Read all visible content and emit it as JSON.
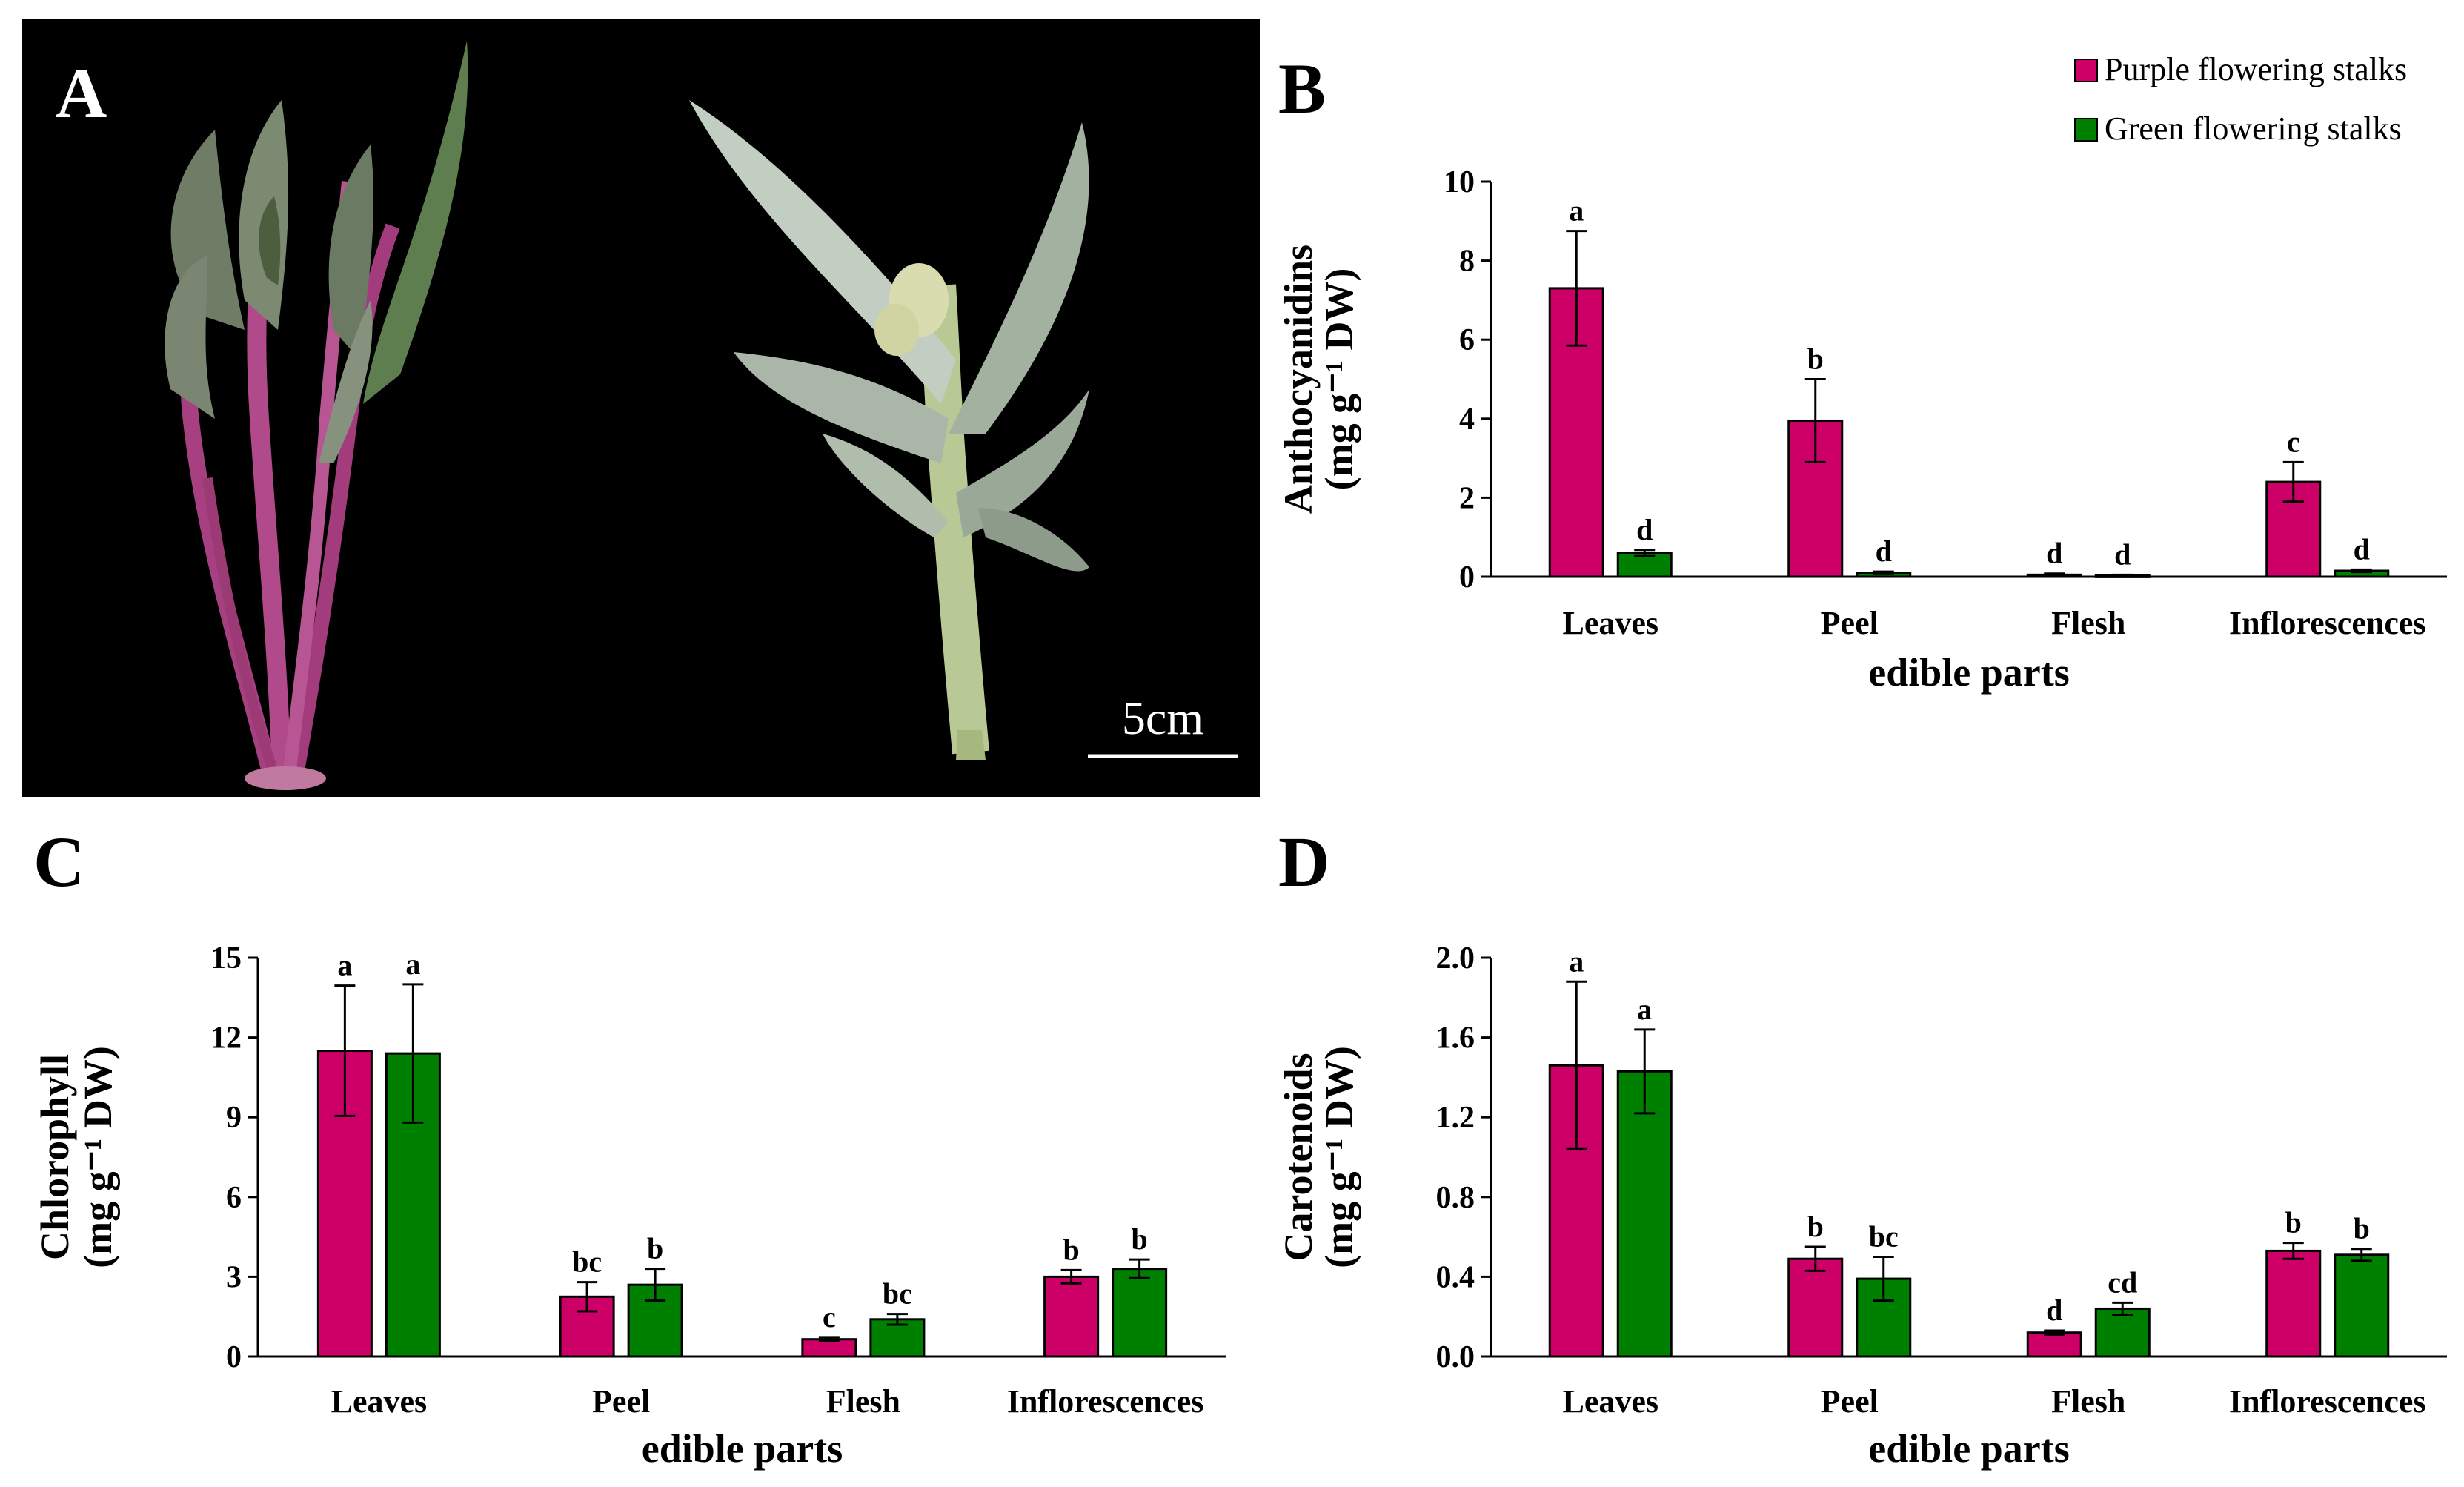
{
  "panels": {
    "a": "A",
    "b": "B",
    "c": "C",
    "d": "D"
  },
  "photo": {
    "scale_label": "5cm"
  },
  "legend": {
    "items": [
      {
        "label": "Purple flowering stalks",
        "color": "#cc0066"
      },
      {
        "label": "Green flowering stalks",
        "color": "#008000"
      }
    ]
  },
  "chart_data": [
    {
      "panel": "B",
      "type": "bar",
      "categories": [
        "Leaves",
        "Peel",
        "Flesh",
        "Inflorescences"
      ],
      "xlabel": "edible parts",
      "ylabel": "Anthocyanidins",
      "ylabel_unit": "(mg g⁻¹ DW)",
      "ylim": [
        0,
        10
      ],
      "yticks": [
        "0",
        "2",
        "4",
        "6",
        "8",
        "10"
      ],
      "series": [
        {
          "name": "Purple flowering stalks",
          "color": "#cc0066",
          "values": [
            7.3,
            3.95,
            0.05,
            2.4
          ],
          "errors": [
            1.45,
            1.05,
            0.03,
            0.5
          ],
          "labels": [
            "a",
            "b",
            "d",
            "c"
          ]
        },
        {
          "name": "Green flowering stalks",
          "color": "#008000",
          "values": [
            0.6,
            0.1,
            0.03,
            0.15
          ],
          "errors": [
            0.08,
            0.03,
            0.02,
            0.03
          ],
          "labels": [
            "d",
            "d",
            "d",
            "d"
          ]
        }
      ]
    },
    {
      "panel": "C",
      "type": "bar",
      "categories": [
        "Leaves",
        "Peel",
        "Flesh",
        "Inflorescences"
      ],
      "xlabel": "edible parts",
      "ylabel": "Chlorophyll",
      "ylabel_unit": "(mg g⁻¹ DW)",
      "ylim": [
        0,
        15
      ],
      "yticks": [
        "0",
        "3",
        "6",
        "9",
        "12",
        "15"
      ],
      "series": [
        {
          "name": "Purple flowering stalks",
          "color": "#cc0066",
          "values": [
            11.5,
            2.25,
            0.65,
            3.0
          ],
          "errors": [
            2.45,
            0.55,
            0.08,
            0.25
          ],
          "labels": [
            "a",
            "bc",
            "c",
            "b"
          ]
        },
        {
          "name": "Green flowering stalks",
          "color": "#008000",
          "values": [
            11.4,
            2.7,
            1.4,
            3.3
          ],
          "errors": [
            2.6,
            0.6,
            0.2,
            0.35
          ],
          "labels": [
            "a",
            "b",
            "bc",
            "b"
          ]
        }
      ]
    },
    {
      "panel": "D",
      "type": "bar",
      "categories": [
        "Leaves",
        "Peel",
        "Flesh",
        "Inflorescences"
      ],
      "xlabel": "edible parts",
      "ylabel": "Carotenoids",
      "ylabel_unit": "(mg g⁻¹ DW)",
      "ylim": [
        0,
        2.0
      ],
      "yticks": [
        "0.0",
        "0.4",
        "0.8",
        "1.2",
        "1.6",
        "2.0"
      ],
      "series": [
        {
          "name": "Purple flowering stalks",
          "color": "#cc0066",
          "values": [
            1.46,
            0.49,
            0.12,
            0.53
          ],
          "errors": [
            0.42,
            0.06,
            0.01,
            0.04
          ],
          "labels": [
            "a",
            "b",
            "d",
            "b"
          ]
        },
        {
          "name": "Green flowering stalks",
          "color": "#008000",
          "values": [
            1.43,
            0.39,
            0.24,
            0.51
          ],
          "errors": [
            0.21,
            0.11,
            0.03,
            0.03
          ],
          "labels": [
            "a",
            "bc",
            "cd",
            "b"
          ]
        }
      ]
    }
  ]
}
